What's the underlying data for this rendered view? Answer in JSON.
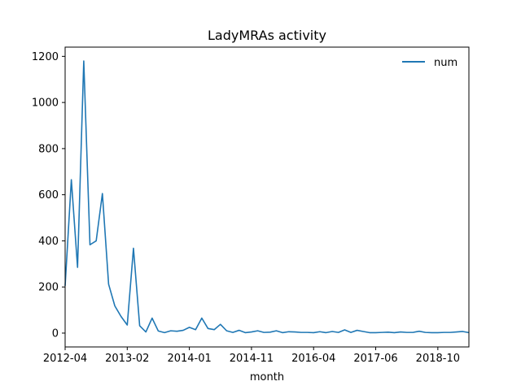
{
  "chart_data": {
    "type": "line",
    "title": "LadyMRAs activity",
    "xlabel": "month",
    "ylabel": "",
    "x_tick_labels": [
      "2012-04",
      "2013-02",
      "2014-01",
      "2014-11",
      "2016-04",
      "2017-06",
      "2018-10"
    ],
    "x_tick_index": [
      0,
      10,
      20,
      30,
      40,
      50,
      60
    ],
    "y_ticks": [
      0,
      200,
      400,
      600,
      800,
      1000,
      1200
    ],
    "ylim": [
      -60,
      1240
    ],
    "xlim": [
      0,
      65
    ],
    "grid": false,
    "legend_position": "upper right",
    "series": [
      {
        "name": "num",
        "color": "#1f77b4",
        "values": [
          205,
          665,
          285,
          1180,
          383,
          400,
          605,
          212,
          118,
          72,
          35,
          368,
          32,
          5,
          65,
          9,
          2,
          10,
          8,
          12,
          25,
          15,
          65,
          20,
          15,
          38,
          10,
          3,
          12,
          2,
          5,
          10,
          3,
          4,
          10,
          2,
          6,
          5,
          3,
          3,
          2,
          6,
          2,
          7,
          3,
          14,
          3,
          12,
          7,
          2,
          2,
          3,
          4,
          2,
          5,
          3,
          3,
          8,
          3,
          2,
          2,
          3,
          3,
          5,
          7,
          2
        ]
      }
    ]
  }
}
